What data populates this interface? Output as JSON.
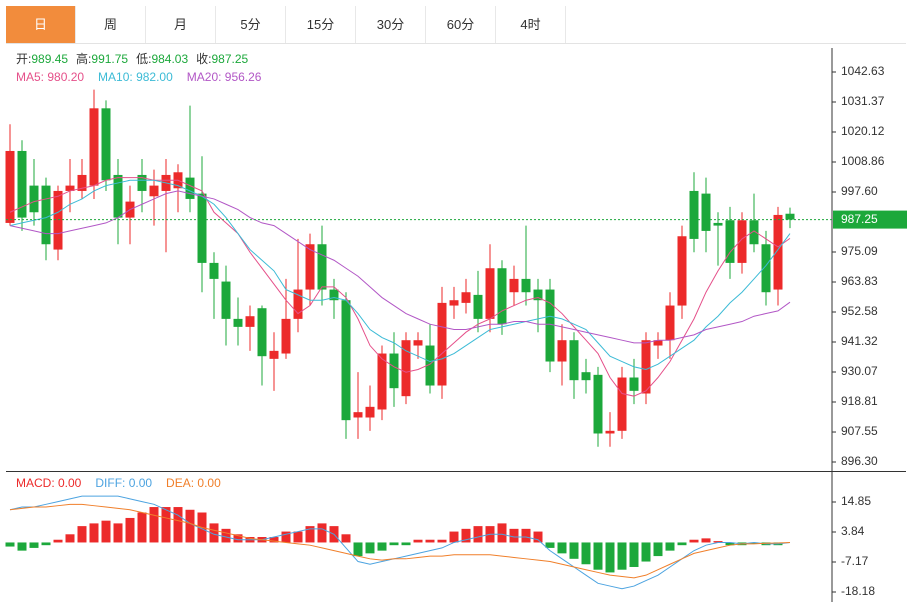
{
  "tabs": [
    "日",
    "周",
    "月",
    "5分",
    "15分",
    "30分",
    "60分",
    "4时"
  ],
  "active_tab": 0,
  "chart_data": [
    {
      "type": "candlestick",
      "info": [
        {
          "label": "开:",
          "value": 989.45
        },
        {
          "label": "高:",
          "value": 991.75
        },
        {
          "label": "低:",
          "value": 984.03
        },
        {
          "label": "收:",
          "value": 987.25
        }
      ],
      "open": [
        986,
        1013,
        1000,
        1000,
        976,
        998,
        998,
        1000,
        1029,
        1004,
        988,
        1004,
        996,
        998,
        999,
        1003,
        997,
        971,
        964,
        950,
        947,
        954,
        935,
        937,
        950,
        961,
        978,
        961,
        957,
        913,
        913,
        916,
        937,
        921,
        940,
        940,
        925,
        955,
        956,
        959,
        950,
        969,
        960,
        965,
        961,
        961,
        934,
        942,
        930,
        929,
        907,
        908,
        928,
        922,
        940,
        942,
        955,
        998,
        997,
        986,
        987,
        971,
        987,
        978,
        961,
        989.45
      ],
      "high": [
        1023,
        1017,
        1010,
        1003,
        1000,
        1010,
        1010,
        1036,
        1032,
        1010,
        1000,
        1010,
        1006,
        1010,
        1008,
        1030,
        1011,
        975,
        970,
        958,
        955,
        955,
        945,
        965,
        980,
        982,
        985,
        965,
        960,
        930,
        925,
        940,
        945,
        945,
        945,
        948,
        962,
        962,
        965,
        968,
        978,
        972,
        970,
        985,
        965,
        965,
        948,
        945,
        935,
        932,
        915,
        932,
        935,
        945,
        945,
        960,
        985,
        1005,
        1003,
        990,
        992,
        990,
        997,
        983,
        992,
        991.75
      ],
      "low": [
        985,
        983,
        985,
        972,
        972,
        990,
        995,
        995,
        998,
        978,
        978,
        990,
        985,
        975,
        990,
        990,
        960,
        950,
        940,
        940,
        938,
        925,
        923,
        935,
        945,
        955,
        955,
        950,
        905,
        905,
        908,
        912,
        917,
        918,
        935,
        922,
        920,
        950,
        952,
        945,
        945,
        944,
        955,
        955,
        945,
        930,
        925,
        920,
        922,
        902,
        902,
        905,
        918,
        918,
        935,
        935,
        950,
        975,
        975,
        970,
        965,
        967,
        975,
        955,
        955,
        984.03
      ],
      "close": [
        1013,
        988,
        990,
        978,
        998,
        1000,
        1004,
        1029,
        1002,
        988,
        994,
        998,
        1000,
        1004,
        1005,
        995,
        971,
        965,
        950,
        947,
        951,
        936,
        938,
        950,
        961,
        978,
        961,
        957,
        912,
        915,
        917,
        937,
        924,
        942,
        942,
        925,
        956,
        957,
        960,
        950,
        969,
        948,
        965,
        960,
        957,
        934,
        942,
        927,
        927,
        907,
        908,
        928,
        923,
        942,
        942,
        955,
        981,
        980,
        983,
        985,
        971,
        987,
        978,
        960,
        989,
        987.25
      ],
      "up_color": "#ec2a2a",
      "down_color": "#1ca83b",
      "ylim": [
        893.3,
        1050.88
      ],
      "yticks": [
        1042.63,
        1031.37,
        1020.12,
        1008.86,
        {
          "value": 997.6,
          "label": "997.60"
        },
        975.09,
        963.83,
        952.58,
        941.32,
        930.07,
        918.81,
        907.55,
        {
          "value": 896.3,
          "label": "896.30"
        }
      ],
      "last_price": 987.25,
      "last_color": "#1ca83b",
      "series": [
        {
          "legend": "MA5: 980.20",
          "color": "#e5508a",
          "values": [
            990,
            992,
            994,
            995,
            996,
            998,
            999,
            1000,
            1002,
            1003,
            1003,
            1003,
            1002,
            1002,
            1002,
            1000,
            998,
            990,
            986,
            982,
            975,
            969,
            963,
            957,
            952,
            955,
            962,
            962,
            958,
            950,
            940,
            935,
            932,
            930,
            931,
            933,
            937,
            941,
            945,
            948,
            950,
            953,
            955,
            957,
            958,
            956,
            952,
            947,
            942,
            937,
            928,
            922,
            921,
            923,
            928,
            934,
            942,
            950,
            960,
            968,
            975,
            980,
            983,
            980,
            977,
            980.2
          ]
        },
        {
          "legend": "MA10: 982.00",
          "color": "#3cbbd6",
          "values": [
            985,
            986,
            987,
            988,
            990,
            993,
            995,
            998,
            1000,
            1001,
            1002,
            1002,
            1002,
            1001,
            1000,
            998,
            996,
            993,
            988,
            982,
            976,
            972,
            968,
            961,
            959,
            957,
            957,
            958,
            957,
            952,
            946,
            943,
            941,
            938,
            936,
            934,
            935,
            937,
            940,
            943,
            946,
            947,
            948,
            949,
            950,
            951,
            950,
            948,
            946,
            941,
            936,
            934,
            932,
            931,
            933,
            936,
            939,
            942,
            947,
            951,
            956,
            960,
            965,
            970,
            976,
            982
          ]
        },
        {
          "legend": "MA20: 956.26",
          "color": "#b257c6",
          "values": [
            985,
            984,
            983,
            982,
            982,
            983,
            984,
            985,
            986,
            988,
            991,
            993,
            995,
            997,
            998,
            997,
            996,
            995,
            993,
            991,
            988,
            986,
            985,
            982,
            979,
            976,
            974,
            972,
            969,
            966,
            962,
            958,
            955,
            952,
            950,
            948,
            947,
            946,
            946,
            947,
            948,
            948,
            949,
            949,
            948,
            948,
            947,
            946,
            945,
            944,
            943,
            942,
            941,
            941,
            942,
            942,
            943,
            944,
            946,
            947,
            948,
            949,
            951,
            952,
            953,
            956.26
          ]
        }
      ]
    },
    {
      "type": "macd",
      "ylim": [
        -21.12,
        24.03
      ],
      "yticks": [
        14.85,
        3.84,
        -7.17,
        -18.18
      ],
      "histogram": {
        "legend": "MACD: 0.00",
        "up_color": "#ec2a2a",
        "down_color": "#1ca83b",
        "values": [
          -1.5,
          -3,
          -2,
          -1,
          1,
          3,
          6,
          7,
          8,
          7,
          9,
          11,
          13,
          13,
          13,
          12,
          11,
          7,
          5,
          3,
          2,
          2,
          2,
          4,
          4,
          6,
          7,
          6,
          3,
          -5,
          -4,
          -3,
          -1,
          -1,
          1,
          1,
          1,
          4,
          5,
          6,
          6,
          7,
          5,
          5,
          4,
          -2,
          -4,
          -6,
          -8,
          -10,
          -11,
          -10,
          -9,
          -7,
          -5,
          -3,
          -1,
          1,
          1.5,
          0.5,
          -1,
          -1,
          -0.5,
          -1,
          -1,
          0
        ]
      },
      "series": [
        {
          "legend": "DIFF: 0.00",
          "color": "#4ca3e0",
          "values": [
            12,
            13,
            13,
            14,
            15,
            16,
            17,
            17,
            17,
            17,
            16,
            15,
            14,
            12,
            10,
            7,
            5,
            3,
            2,
            1,
            1,
            1,
            2,
            3,
            4,
            5,
            5,
            3,
            -2,
            -7,
            -8,
            -7,
            -6,
            -5,
            -4,
            -3,
            -2,
            0,
            1,
            2,
            3,
            3,
            2,
            2,
            1,
            -3,
            -6,
            -9,
            -12,
            -15,
            -16,
            -17,
            -16,
            -14,
            -12,
            -9,
            -6,
            -3,
            -1,
            0,
            0,
            -0.5,
            0,
            -0.5,
            -0.5,
            0
          ]
        },
        {
          "legend": "DEA: 0.00",
          "color": "#f07f2a",
          "values": [
            12,
            12.5,
            13,
            13,
            13.5,
            14,
            14,
            13.5,
            13,
            12.5,
            12,
            11,
            10,
            9,
            8,
            7,
            5.5,
            4.5,
            3.5,
            2.5,
            1.5,
            1,
            0.5,
            0,
            -0.5,
            -1,
            -2,
            -3,
            -4,
            -5,
            -6,
            -6.5,
            -6,
            -6,
            -5.5,
            -5,
            -5,
            -4.5,
            -4.5,
            -4.5,
            -4.5,
            -5,
            -5.5,
            -6,
            -6.5,
            -7,
            -8,
            -9,
            -10,
            -11,
            -12,
            -12.5,
            -13,
            -12,
            -10,
            -8,
            -6,
            -4,
            -3,
            -2,
            -1,
            -0.5,
            -0.5,
            -0.3,
            -0.2,
            0
          ]
        }
      ]
    }
  ]
}
